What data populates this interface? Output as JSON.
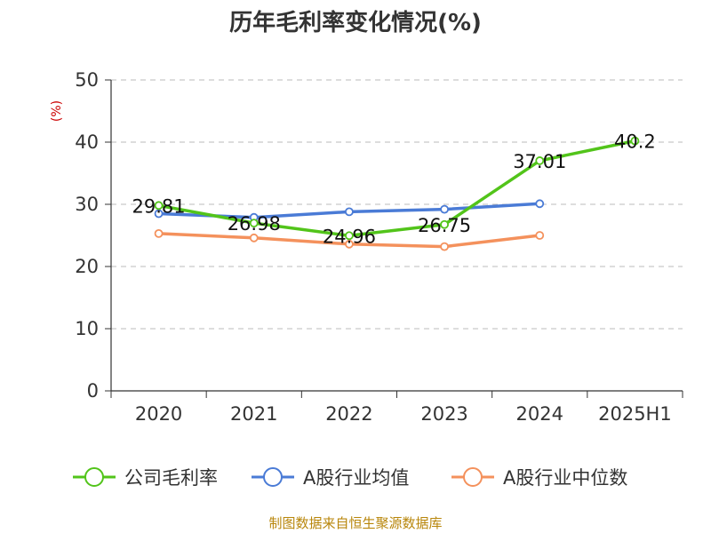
{
  "chart_data": {
    "type": "line",
    "title": "历年毛利率变化情况(%)",
    "ylabel": "(%)",
    "xlabel": "",
    "categories": [
      "2020",
      "2021",
      "2022",
      "2023",
      "2024",
      "2025H1"
    ],
    "ylim": [
      0,
      50
    ],
    "yticks": [
      0,
      10,
      20,
      30,
      40,
      50
    ],
    "grid": true,
    "legend_position": "bottom",
    "series": [
      {
        "name": "公司毛利率",
        "color": "#52c41a",
        "values": [
          29.81,
          26.98,
          24.96,
          26.75,
          37.01,
          40.2
        ],
        "labels": [
          "29.81",
          "26.98",
          "24.96",
          "26.75",
          "37.01",
          "40.2"
        ]
      },
      {
        "name": "A股行业均值",
        "color": "#4a7bd6",
        "values": [
          28.5,
          27.9,
          28.8,
          29.2,
          30.1,
          null
        ]
      },
      {
        "name": "A股行业中位数",
        "color": "#f4915c",
        "values": [
          25.3,
          24.6,
          23.6,
          23.2,
          25.0,
          null
        ]
      }
    ]
  },
  "source": "制图数据来自恒生聚源数据库"
}
